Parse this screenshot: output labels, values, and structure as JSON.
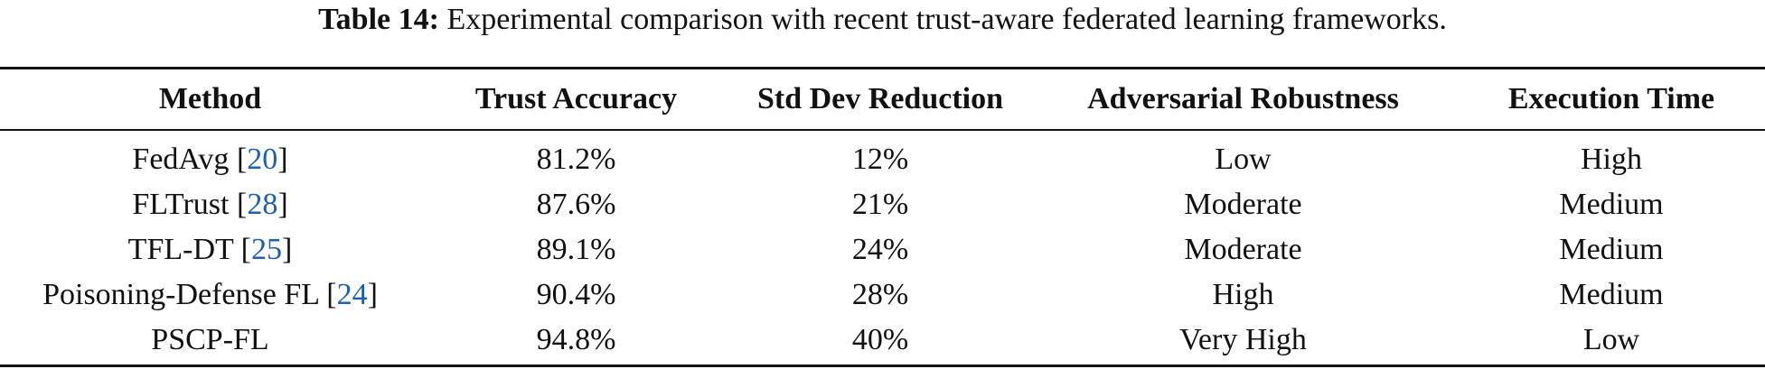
{
  "caption": {
    "label": "Table 14:",
    "text": "Experimental comparison with recent trust-aware federated learning frameworks."
  },
  "table": {
    "headers": [
      "Method",
      "Trust Accuracy",
      "Std Dev Reduction",
      "Adversarial Robustness",
      "Execution Time"
    ],
    "rows": [
      {
        "method": "FedAvg",
        "cite": "20",
        "trust_accuracy": "81.2%",
        "std_dev_reduction": "12%",
        "adversarial_robustness": "Low",
        "execution_time": "High"
      },
      {
        "method": "FLTrust",
        "cite": "28",
        "trust_accuracy": "87.6%",
        "std_dev_reduction": "21%",
        "adversarial_robustness": "Moderate",
        "execution_time": "Medium"
      },
      {
        "method": "TFL-DT",
        "cite": "25",
        "trust_accuracy": "89.1%",
        "std_dev_reduction": "24%",
        "adversarial_robustness": "Moderate",
        "execution_time": "Medium"
      },
      {
        "method": "Poisoning-Defense FL",
        "cite": "24",
        "trust_accuracy": "90.4%",
        "std_dev_reduction": "28%",
        "adversarial_robustness": "High",
        "execution_time": "Medium"
      },
      {
        "method": "PSCP-FL",
        "cite": "",
        "trust_accuracy": "94.8%",
        "std_dev_reduction": "40%",
        "adversarial_robustness": "Very High",
        "execution_time": "Low"
      }
    ]
  }
}
